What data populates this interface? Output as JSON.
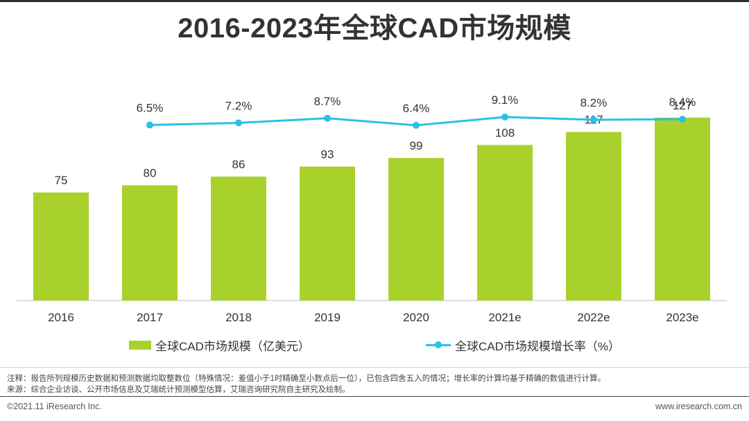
{
  "page": {
    "title": "2016-2023年全球CAD市场规模",
    "notes": "注释：报告所列规模历史数据和预测数据均取整数位（特殊情况：差值小于1时精确至小数点后一位），已包含四舍五入的情况；增长率的计算均基于精确的数值进行计算。",
    "source": "来源：综合企业访谈、公开市场信息及艾瑞统计预测模型估算，艾瑞咨询研究院自主研究及绘制。",
    "copyright": "©2021.11 iResearch Inc.",
    "website": "www.iresearch.com.cn"
  },
  "chart_data": {
    "type": "bar",
    "title": "2016-2023年全球CAD市场规模",
    "categories": [
      "2016",
      "2017",
      "2018",
      "2019",
      "2020",
      "2021e",
      "2022e",
      "2023e"
    ],
    "series": [
      {
        "name": "全球CAD市场规模（亿美元）",
        "type": "bar",
        "values": [
          75,
          80,
          86,
          93,
          99,
          108,
          117,
          127
        ],
        "labels": [
          "75",
          "80",
          "86",
          "93",
          "99",
          "108",
          "117",
          "127"
        ],
        "color": "#a9d12c"
      },
      {
        "name": "全球CAD市场规模增长率（%）",
        "type": "line",
        "x": [
          "2017",
          "2018",
          "2019",
          "2020",
          "2021e",
          "2022e",
          "2023e"
        ],
        "values": [
          6.5,
          7.2,
          8.7,
          6.4,
          9.1,
          8.2,
          8.4
        ],
        "labels": [
          "6.5%",
          "7.2%",
          "8.7%",
          "6.4%",
          "9.1%",
          "8.2%",
          "8.4%"
        ],
        "color": "#29c0ea"
      }
    ],
    "xlabel": "",
    "ylabel": "",
    "ylim": [
      0,
      155
    ],
    "legend": "bottom"
  }
}
